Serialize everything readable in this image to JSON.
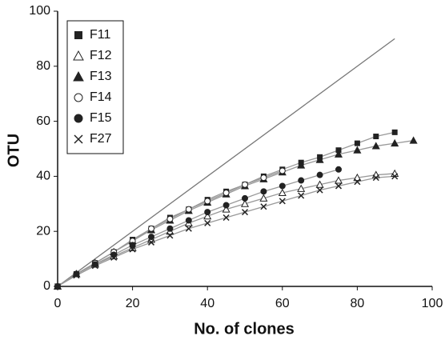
{
  "chart_data": {
    "type": "line",
    "xlabel": "No. of clones",
    "ylabel": "OTU",
    "xlim": [
      0,
      100
    ],
    "xticks": [
      0,
      20,
      40,
      60,
      80,
      100
    ],
    "ylim": [
      0,
      100
    ],
    "yticks": [
      0,
      20,
      40,
      60,
      80,
      100
    ],
    "legend": "upper left",
    "series": [
      {
        "color": "#777777",
        "marker": "none",
        "x": [
          0,
          90
        ],
        "values": [
          0,
          90
        ]
      },
      {
        "name": "F11",
        "color": "#222222",
        "marker": "square",
        "x": [
          0,
          5,
          10,
          15,
          20,
          25,
          30,
          35,
          40,
          45,
          50,
          55,
          60,
          65,
          70,
          75,
          80,
          85,
          90
        ],
        "values": [
          0,
          4.5,
          8.5,
          12.5,
          17,
          21,
          25,
          28,
          31.5,
          34.5,
          37,
          40,
          42.5,
          45,
          47,
          49.5,
          52,
          54.5,
          56
        ]
      },
      {
        "name": "F12",
        "color": "#222222",
        "marker": "triangle-open",
        "x": [
          0,
          5,
          10,
          15,
          20,
          25,
          30,
          35,
          40,
          45,
          50,
          55,
          60,
          65,
          70,
          75,
          80,
          85,
          90
        ],
        "values": [
          0,
          4.5,
          8,
          11,
          14,
          17,
          20,
          23,
          25.5,
          28,
          30,
          32,
          34,
          35.5,
          37,
          38.5,
          39.5,
          40.5,
          41
        ]
      },
      {
        "name": "F13",
        "color": "#222222",
        "marker": "triangle",
        "x": [
          0,
          5,
          10,
          15,
          20,
          25,
          30,
          35,
          40,
          45,
          50,
          55,
          60,
          65,
          70,
          75,
          80,
          85,
          90,
          95
        ],
        "values": [
          0,
          4.5,
          8.5,
          12.5,
          16.5,
          20.5,
          24,
          27.5,
          30.5,
          33.5,
          36.5,
          39,
          41.5,
          44,
          46,
          48,
          49.5,
          51,
          52,
          53
        ]
      },
      {
        "name": "F14",
        "color": "#222222",
        "marker": "circle-open",
        "x": [
          0,
          5,
          10,
          15,
          20,
          25,
          30,
          35,
          40,
          45,
          50,
          55,
          60
        ],
        "values": [
          0,
          4.5,
          8.5,
          12.5,
          16.5,
          21,
          24.5,
          28,
          31,
          34,
          37,
          39.5,
          42
        ]
      },
      {
        "name": "F15",
        "color": "#222222",
        "marker": "circle",
        "x": [
          0,
          5,
          10,
          15,
          20,
          25,
          30,
          35,
          40,
          45,
          50,
          55,
          60,
          65,
          70,
          75
        ],
        "values": [
          0,
          4.5,
          8,
          11.5,
          15,
          18,
          21,
          24,
          27,
          29.5,
          32,
          34.5,
          36.5,
          38.5,
          40.5,
          42.5
        ]
      },
      {
        "name": "F27",
        "color": "#222222",
        "marker": "x",
        "x": [
          0,
          5,
          10,
          15,
          20,
          25,
          30,
          35,
          40,
          45,
          50,
          55,
          60,
          65,
          70,
          75,
          80,
          85,
          90
        ],
        "values": [
          0,
          4,
          7.5,
          10.5,
          13.5,
          16,
          18.5,
          21,
          23,
          25,
          27,
          29,
          31,
          33,
          35,
          36.5,
          38,
          39.5,
          40
        ]
      }
    ]
  }
}
